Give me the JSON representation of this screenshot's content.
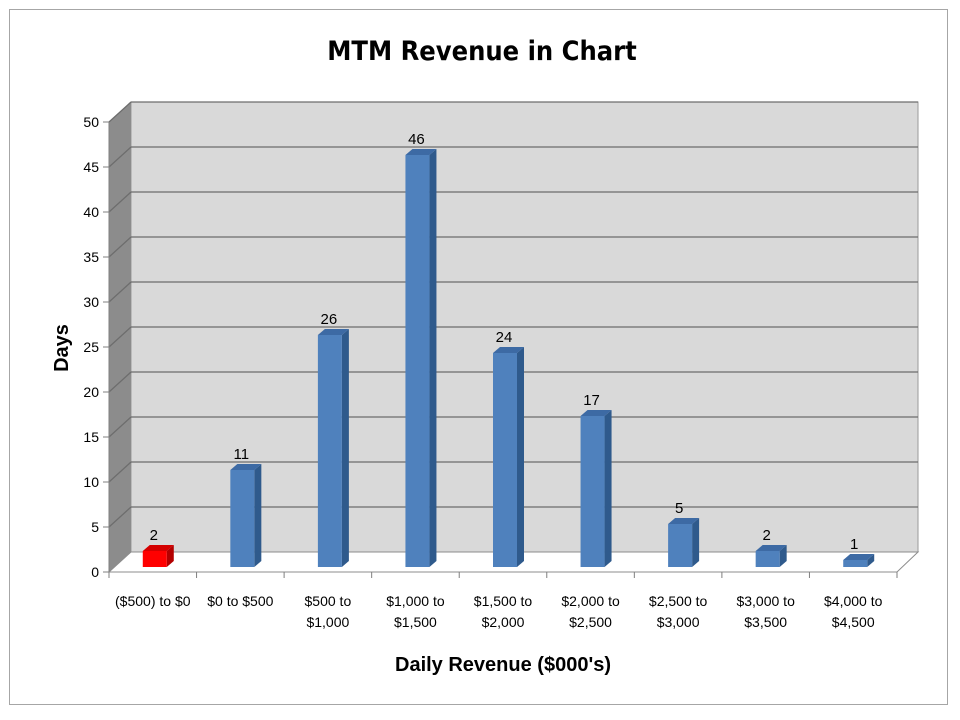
{
  "chart_data": {
    "type": "bar",
    "title": "MTM Revenue in Chart",
    "xlabel": "Daily Revenue ($000's)",
    "ylabel": "Days",
    "ylim": [
      0,
      50
    ],
    "yticks": [
      0,
      5,
      10,
      15,
      20,
      25,
      30,
      35,
      40,
      45,
      50
    ],
    "grid": true,
    "legend": "none",
    "categories": [
      [
        "($500) to $0"
      ],
      [
        "$0 to $500"
      ],
      [
        "$500 to",
        "$1,000"
      ],
      [
        "$1,000 to",
        "$1,500"
      ],
      [
        "$1,500 to",
        "$2,000"
      ],
      [
        "$2,000 to",
        "$2,500"
      ],
      [
        "$2,500 to",
        "$3,000"
      ],
      [
        "$3,000 to",
        "$3,500"
      ],
      [
        "$4,000 to",
        "$4,500"
      ]
    ],
    "values": [
      2,
      11,
      26,
      46,
      24,
      17,
      5,
      2,
      1
    ],
    "data_labels": [
      "2",
      "11",
      "26",
      "46",
      "24",
      "17",
      "5",
      "2",
      "1"
    ],
    "colors": {
      "bar": "#4f81bd",
      "bar_side": "#2f5a8c",
      "bar_top": "#3d6aa4",
      "highlight": "#ff0000",
      "highlight_side": "#b30000",
      "highlight_top": "#d40000",
      "wall": "#d9d9d9",
      "side_wall": "#8c8c8c",
      "gridline": "#6d6d6d"
    },
    "highlight_index": 0
  }
}
